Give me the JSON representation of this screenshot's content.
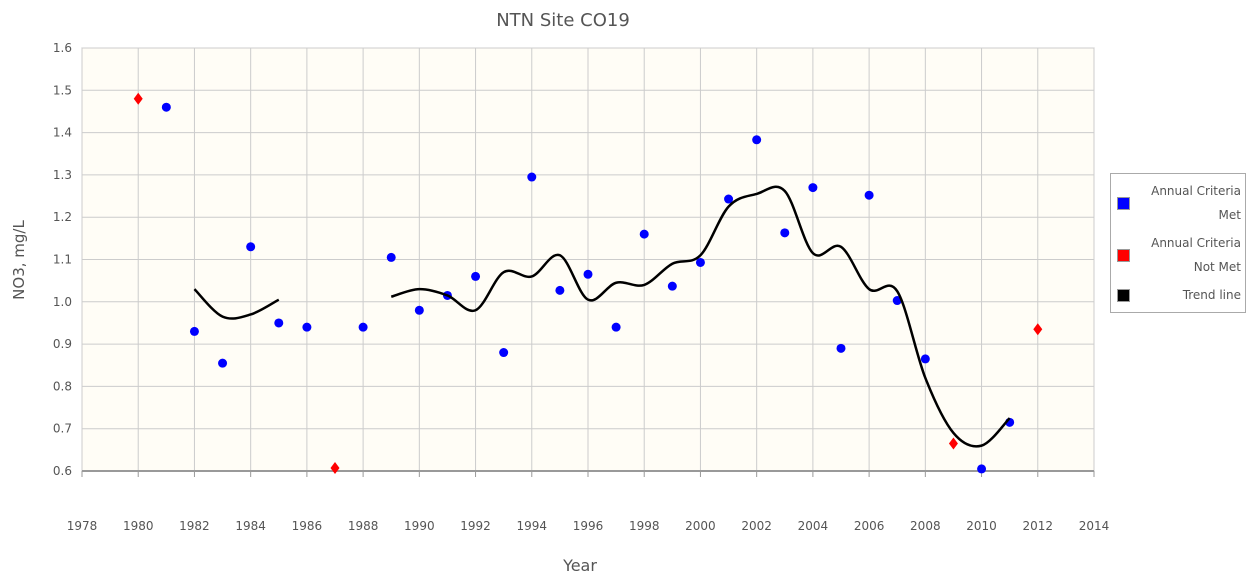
{
  "chart_data": {
    "type": "scatter",
    "title": "NTN Site CO19",
    "xlabel": "Year",
    "ylabel": "NO3, mg/L",
    "x": [
      1980,
      1981,
      1982,
      1983,
      1984,
      1985,
      1986,
      1987,
      1988,
      1989,
      1990,
      1991,
      1992,
      1993,
      1994,
      1995,
      1996,
      1997,
      1998,
      1999,
      2000,
      2001,
      2002,
      2003,
      2004,
      2005,
      2006,
      2007,
      2008,
      2009,
      2010,
      2011,
      2012
    ],
    "series": [
      {
        "name": "Annual Criteria Met",
        "color": "#0000ff",
        "marker": "circle",
        "values": [
          null,
          1.46,
          0.93,
          0.855,
          1.13,
          0.95,
          0.94,
          null,
          0.94,
          1.105,
          0.98,
          1.015,
          1.06,
          0.88,
          1.295,
          1.027,
          1.065,
          0.94,
          1.16,
          1.037,
          1.093,
          1.243,
          1.383,
          1.163,
          1.27,
          0.89,
          1.252,
          1.003,
          0.865,
          null,
          0.605,
          0.715,
          null
        ]
      },
      {
        "name": "Annual Criteria Not Met",
        "color": "#ff0000",
        "marker": "diamond",
        "values": [
          1.48,
          null,
          null,
          null,
          null,
          null,
          null,
          0.607,
          null,
          null,
          null,
          null,
          null,
          null,
          null,
          null,
          null,
          null,
          null,
          null,
          null,
          null,
          null,
          null,
          null,
          null,
          null,
          null,
          null,
          0.665,
          null,
          null,
          0.935
        ]
      },
      {
        "name": "Trend line",
        "color": "#000000",
        "marker": "line",
        "values": [
          null,
          null,
          1.03,
          0.965,
          0.97,
          1.005,
          null,
          null,
          null,
          1.012,
          1.03,
          1.015,
          0.98,
          1.07,
          1.06,
          1.11,
          1.005,
          1.045,
          1.04,
          1.09,
          1.11,
          1.225,
          1.255,
          1.262,
          1.115,
          1.13,
          1.03,
          1.025,
          0.82,
          0.69,
          0.66,
          0.725,
          null
        ]
      }
    ],
    "xlim": [
      1978,
      2014
    ],
    "xticks": [
      1978,
      1980,
      1982,
      1984,
      1986,
      1988,
      1990,
      1992,
      1994,
      1996,
      1998,
      2000,
      2002,
      2004,
      2006,
      2008,
      2010,
      2012,
      2014
    ],
    "ylim": [
      0.6,
      1.6
    ],
    "yticks": [
      0.6,
      0.7,
      0.8,
      0.9,
      {
        "value": 1,
        "label": "1.0"
      },
      1.1,
      1.2,
      1.3,
      1.4,
      1.5,
      1.6
    ],
    "grid": true,
    "legend": "right"
  }
}
